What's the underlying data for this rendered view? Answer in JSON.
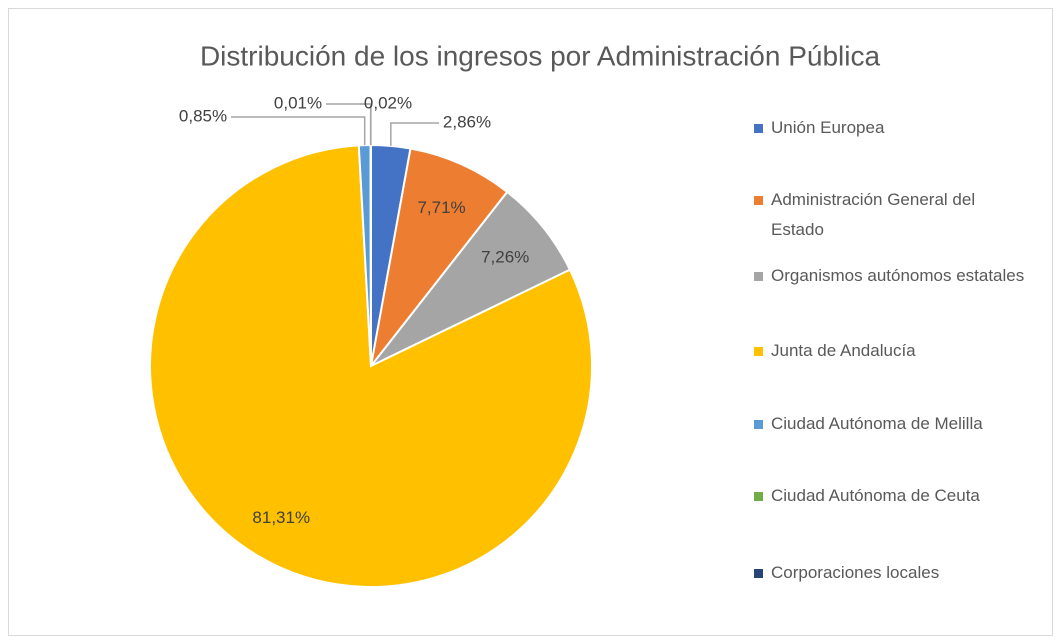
{
  "chart_data": {
    "type": "pie",
    "title": "Distribución de los ingresos por Administración Pública",
    "categories": [
      "Unión Europea",
      "Administración General del Estado",
      "Organismos autónomos estatales",
      "Junta de Andalucía",
      "Ciudad Autónoma de Melilla",
      "Ciudad Autónoma de Ceuta",
      "Corporaciones locales"
    ],
    "values": [
      2.86,
      7.71,
      7.26,
      81.31,
      0.85,
      0.01,
      0.02
    ],
    "value_labels": [
      "2,86%",
      "7,71%",
      "7,26%",
      "81,31%",
      "0,85%",
      "0,01%",
      "0,02%"
    ],
    "colors": [
      "#4472c4",
      "#ed7d31",
      "#a5a5a5",
      "#ffc000",
      "#5b9bd5",
      "#70ad47",
      "#264478"
    ],
    "legend": "right"
  }
}
